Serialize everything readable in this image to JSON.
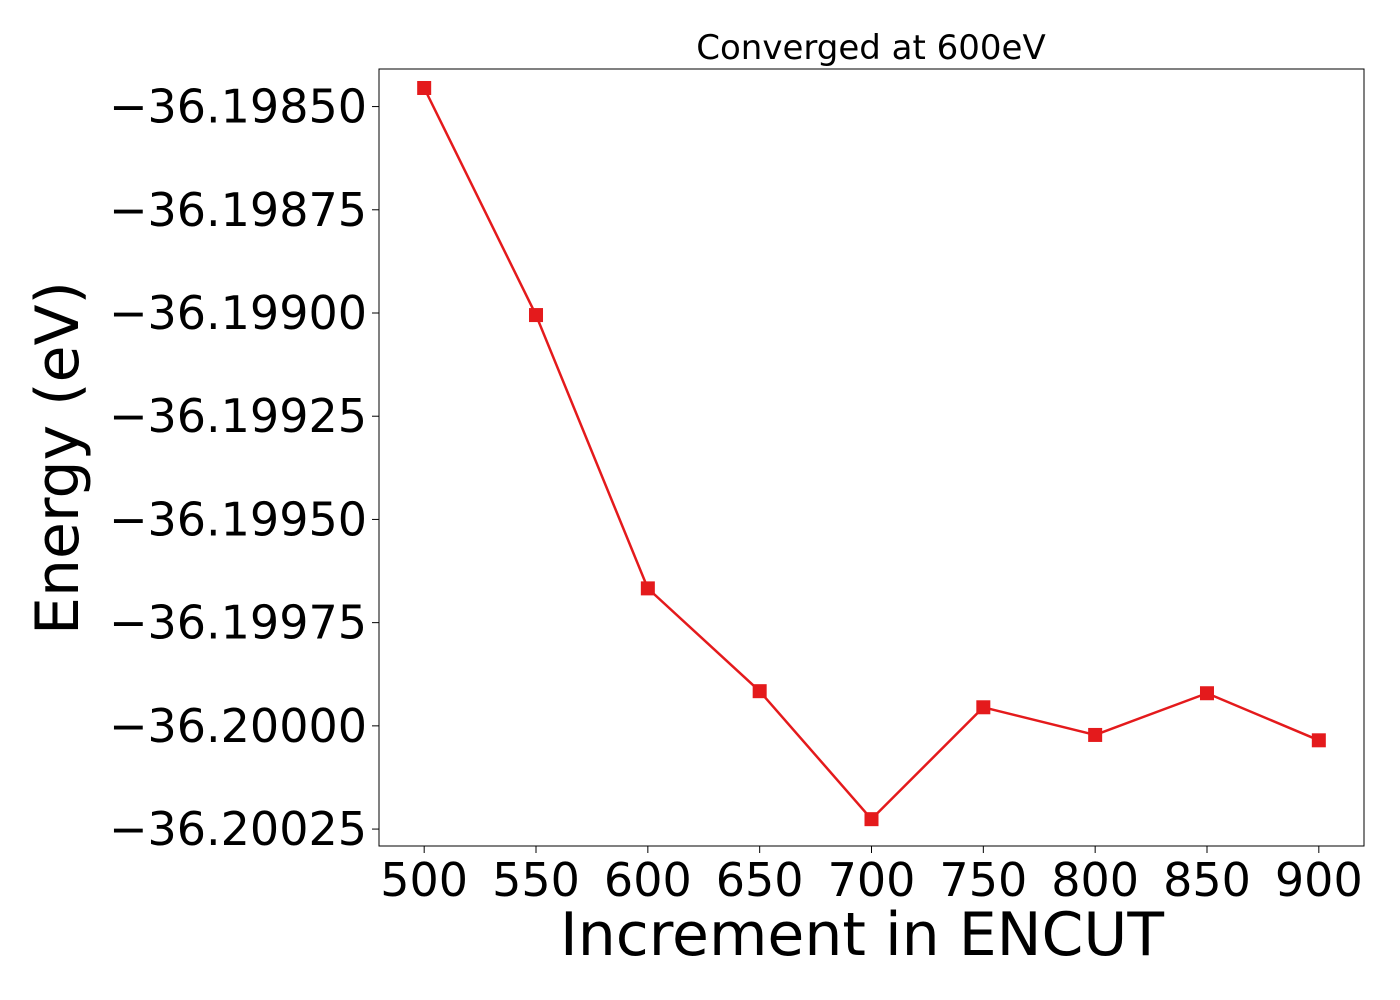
{
  "chart_data": {
    "type": "line",
    "title": "Converged at 600eV",
    "xlabel": "Increment in ENCUT",
    "ylabel": "Energy (eV)",
    "x": [
      500,
      550,
      600,
      650,
      700,
      750,
      800,
      850,
      900
    ],
    "series": [
      {
        "values": [
          -36.198455,
          -36.199005,
          -36.199667,
          -36.199916,
          -36.200226,
          -36.199955,
          -36.200022,
          -36.199921,
          -36.200035
        ],
        "color": "#e41a1c",
        "marker": "square"
      }
    ],
    "xticks": [
      500,
      550,
      600,
      650,
      700,
      750,
      800,
      850,
      900
    ],
    "xtick_labels": [
      "500",
      "550",
      "600",
      "650",
      "700",
      "750",
      "800",
      "850",
      "900"
    ],
    "yticks": [
      -36.1985,
      -36.19875,
      -36.199,
      -36.19925,
      -36.1995,
      -36.19975,
      -36.2,
      -36.20025
    ],
    "ytick_labels": [
      "−36.19850",
      "−36.19875",
      "−36.19900",
      "−36.19925",
      "−36.19950",
      "−36.19975",
      "−36.20000",
      "−36.20025"
    ],
    "xlim": [
      479.8,
      920.2
    ],
    "ylim": [
      -36.200291,
      -36.198409
    ],
    "grid": false,
    "legend": "none"
  }
}
